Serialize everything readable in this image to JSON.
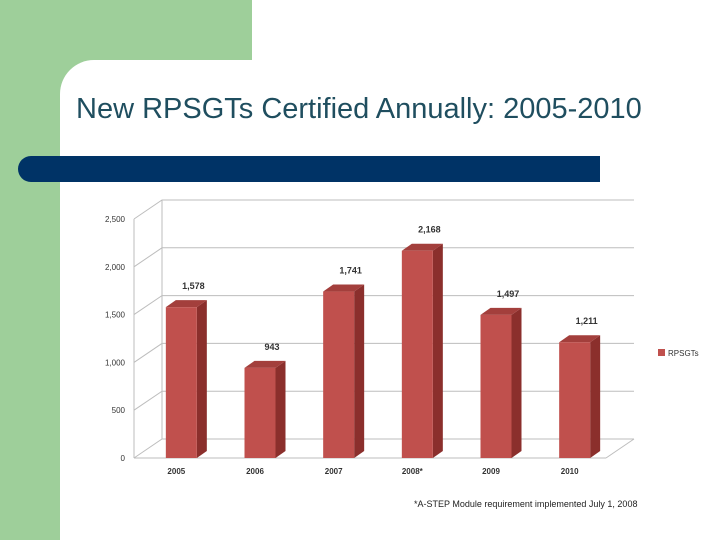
{
  "slide": {
    "title": "New RPSGTs Certified Annually: 2005-2010",
    "footnote": "*A-STEP Module requirement implemented July 1, 2008"
  },
  "colors": {
    "green_block": "#9ecf9a",
    "title_bar": "#003366",
    "bar_front": "#c0504d",
    "bar_side": "#8b2f2c",
    "bar_top": "#a33f3c",
    "grid": "#bdbdbd",
    "title_text": "#1f4e5f"
  },
  "chart_data": {
    "type": "bar",
    "three_d": true,
    "categories": [
      "2005",
      "2006",
      "2007",
      "2008*",
      "2009",
      "2010"
    ],
    "series": [
      {
        "name": "RPSGTs",
        "values": [
          1578,
          943,
          1741,
          2168,
          1497,
          1211
        ]
      }
    ],
    "value_labels": [
      "1,578",
      "943",
      "1,741",
      "2,168",
      "1,497",
      "1,211"
    ],
    "yticks": [
      0,
      500,
      1000,
      1500,
      2000,
      2500
    ],
    "ytick_labels": [
      "0",
      "500",
      "1,000",
      "1,500",
      "2,000",
      "2,500"
    ],
    "ylim": [
      0,
      2500
    ],
    "grid": true,
    "legend": "right"
  }
}
